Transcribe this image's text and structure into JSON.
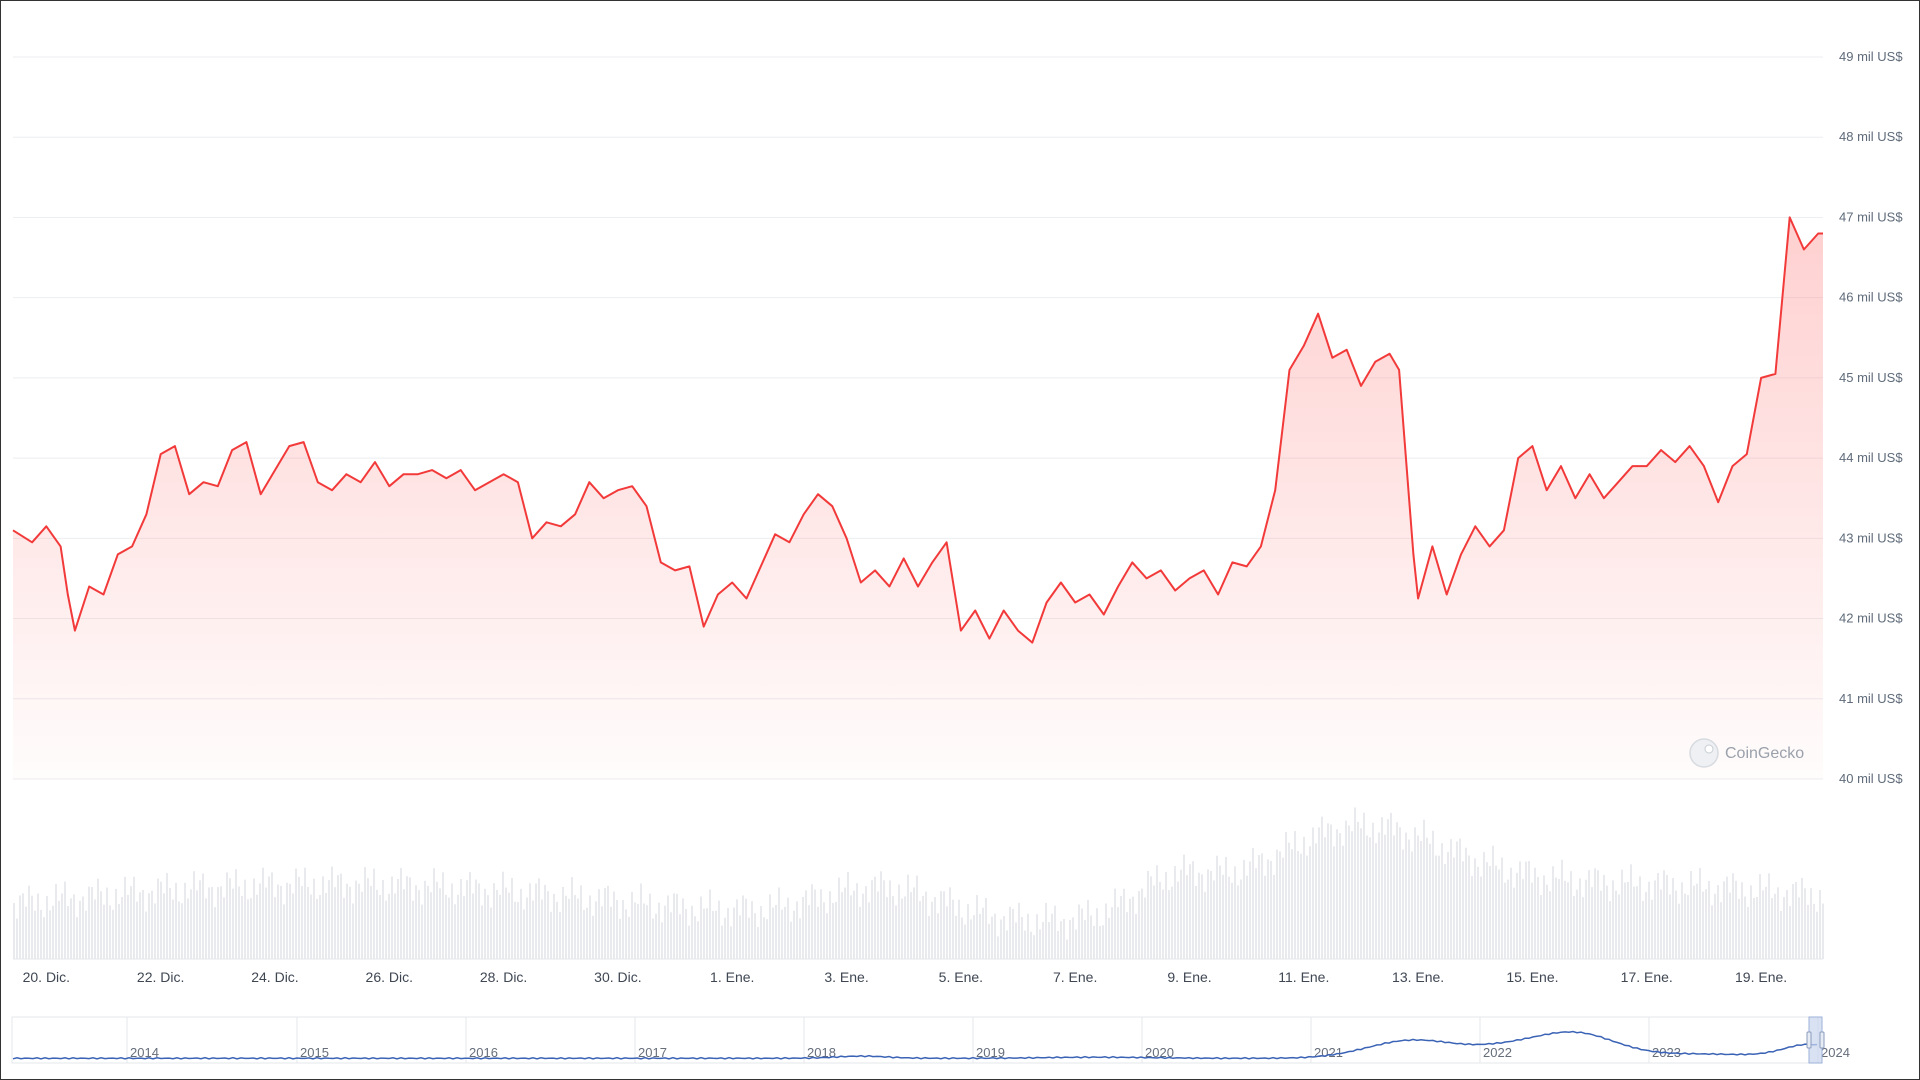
{
  "chart_data": {
    "type": "area",
    "title": "",
    "xlabel": "",
    "ylabel": "",
    "ylim": [
      40000,
      49000
    ],
    "y_tick_values": [
      40000,
      41000,
      42000,
      43000,
      44000,
      45000,
      46000,
      47000,
      48000,
      49000
    ],
    "y_tick_labels": [
      "40 mil US$",
      "41 mil US$",
      "42 mil US$",
      "43 mil US$",
      "44 mil US$",
      "45 mil US$",
      "46 mil US$",
      "47 mil US$",
      "48 mil US$",
      "49 mil US$"
    ],
    "x_range": [
      "2023-12-19T10:00",
      "2024-01-20T02:00"
    ],
    "x_ticks": [
      {
        "date": "2023-12-20",
        "label": "20. Dic."
      },
      {
        "date": "2023-12-22",
        "label": "22. Dic."
      },
      {
        "date": "2023-12-24",
        "label": "24. Dic."
      },
      {
        "date": "2023-12-26",
        "label": "26. Dic."
      },
      {
        "date": "2023-12-28",
        "label": "28. Dic."
      },
      {
        "date": "2023-12-30",
        "label": "30. Dic."
      },
      {
        "date": "2024-01-01",
        "label": "1. Ene."
      },
      {
        "date": "2024-01-03",
        "label": "3. Ene."
      },
      {
        "date": "2024-01-05",
        "label": "5. Ene."
      },
      {
        "date": "2024-01-07",
        "label": "7. Ene."
      },
      {
        "date": "2024-01-09",
        "label": "9. Ene."
      },
      {
        "date": "2024-01-11",
        "label": "11. Ene."
      },
      {
        "date": "2024-01-13",
        "label": "13. Ene."
      },
      {
        "date": "2024-01-15",
        "label": "15. Ene."
      },
      {
        "date": "2024-01-17",
        "label": "17. Ene."
      },
      {
        "date": "2024-01-19",
        "label": "19. Ene."
      }
    ],
    "grid": true,
    "line_color": "#f23a3a",
    "fill_color": "#ff6b6b",
    "series": [
      {
        "values": [
          [
            "2023-12-19T10:00",
            43100
          ],
          [
            "2023-12-19T18:00",
            42950
          ],
          [
            "2023-12-20T00:00",
            43150
          ],
          [
            "2023-12-20T06:00",
            42900
          ],
          [
            "2023-12-20T09:00",
            42300
          ],
          [
            "2023-12-20T12:00",
            41850
          ],
          [
            "2023-12-20T18:00",
            42400
          ],
          [
            "2023-12-21T00:00",
            42300
          ],
          [
            "2023-12-21T06:00",
            42800
          ],
          [
            "2023-12-21T12:00",
            42900
          ],
          [
            "2023-12-21T18:00",
            43300
          ],
          [
            "2023-12-22T00:00",
            44050
          ],
          [
            "2023-12-22T06:00",
            44150
          ],
          [
            "2023-12-22T12:00",
            43550
          ],
          [
            "2023-12-22T18:00",
            43700
          ],
          [
            "2023-12-23T00:00",
            43650
          ],
          [
            "2023-12-23T06:00",
            44100
          ],
          [
            "2023-12-23T12:00",
            44200
          ],
          [
            "2023-12-23T18:00",
            43550
          ],
          [
            "2023-12-24T00:00",
            43850
          ],
          [
            "2023-12-24T06:00",
            44150
          ],
          [
            "2023-12-24T12:00",
            44200
          ],
          [
            "2023-12-24T18:00",
            43700
          ],
          [
            "2023-12-25T00:00",
            43600
          ],
          [
            "2023-12-25T06:00",
            43800
          ],
          [
            "2023-12-25T12:00",
            43700
          ],
          [
            "2023-12-25T18:00",
            43950
          ],
          [
            "2023-12-26T00:00",
            43650
          ],
          [
            "2023-12-26T06:00",
            43800
          ],
          [
            "2023-12-26T12:00",
            43800
          ],
          [
            "2023-12-26T18:00",
            43850
          ],
          [
            "2023-12-27T00:00",
            43750
          ],
          [
            "2023-12-27T06:00",
            43850
          ],
          [
            "2023-12-27T12:00",
            43600
          ],
          [
            "2023-12-27T18:00",
            43700
          ],
          [
            "2023-12-28T00:00",
            43800
          ],
          [
            "2023-12-28T06:00",
            43700
          ],
          [
            "2023-12-28T12:00",
            43000
          ],
          [
            "2023-12-28T18:00",
            43200
          ],
          [
            "2023-12-29T00:00",
            43150
          ],
          [
            "2023-12-29T06:00",
            43300
          ],
          [
            "2023-12-29T12:00",
            43700
          ],
          [
            "2023-12-29T18:00",
            43500
          ],
          [
            "2023-12-30T00:00",
            43600
          ],
          [
            "2023-12-30T06:00",
            43650
          ],
          [
            "2023-12-30T12:00",
            43400
          ],
          [
            "2023-12-30T18:00",
            42700
          ],
          [
            "2023-12-31T00:00",
            42600
          ],
          [
            "2023-12-31T06:00",
            42650
          ],
          [
            "2023-12-31T12:00",
            41900
          ],
          [
            "2023-12-31T18:00",
            42300
          ],
          [
            "2024-01-01T00:00",
            42450
          ],
          [
            "2024-01-01T06:00",
            42250
          ],
          [
            "2024-01-01T12:00",
            42650
          ],
          [
            "2024-01-01T18:00",
            43050
          ],
          [
            "2024-01-02T00:00",
            42950
          ],
          [
            "2024-01-02T06:00",
            43300
          ],
          [
            "2024-01-02T12:00",
            43550
          ],
          [
            "2024-01-02T18:00",
            43400
          ],
          [
            "2024-01-03T00:00",
            43000
          ],
          [
            "2024-01-03T06:00",
            42450
          ],
          [
            "2024-01-03T12:00",
            42600
          ],
          [
            "2024-01-03T18:00",
            42400
          ],
          [
            "2024-01-04T00:00",
            42750
          ],
          [
            "2024-01-04T06:00",
            42400
          ],
          [
            "2024-01-04T12:00",
            42700
          ],
          [
            "2024-01-04T18:00",
            42950
          ],
          [
            "2024-01-05T00:00",
            41850
          ],
          [
            "2024-01-05T06:00",
            42100
          ],
          [
            "2024-01-05T12:00",
            41750
          ],
          [
            "2024-01-05T18:00",
            42100
          ],
          [
            "2024-01-06T00:00",
            41850
          ],
          [
            "2024-01-06T06:00",
            41700
          ],
          [
            "2024-01-06T12:00",
            42200
          ],
          [
            "2024-01-06T18:00",
            42450
          ],
          [
            "2024-01-07T00:00",
            42200
          ],
          [
            "2024-01-07T06:00",
            42300
          ],
          [
            "2024-01-07T12:00",
            42050
          ],
          [
            "2024-01-07T18:00",
            42400
          ],
          [
            "2024-01-08T00:00",
            42700
          ],
          [
            "2024-01-08T06:00",
            42500
          ],
          [
            "2024-01-08T12:00",
            42600
          ],
          [
            "2024-01-08T18:00",
            42350
          ],
          [
            "2024-01-09T00:00",
            42500
          ],
          [
            "2024-01-09T06:00",
            42600
          ],
          [
            "2024-01-09T12:00",
            42300
          ],
          [
            "2024-01-09T18:00",
            42700
          ],
          [
            "2024-01-10T00:00",
            42650
          ],
          [
            "2024-01-10T06:00",
            42900
          ],
          [
            "2024-01-10T12:00",
            43600
          ],
          [
            "2024-01-10T18:00",
            45100
          ],
          [
            "2024-01-11T00:00",
            45400
          ],
          [
            "2024-01-11T06:00",
            45800
          ],
          [
            "2024-01-11T12:00",
            45250
          ],
          [
            "2024-01-11T18:00",
            45350
          ],
          [
            "2024-01-12T00:00",
            44900
          ],
          [
            "2024-01-12T06:00",
            45200
          ],
          [
            "2024-01-12T12:00",
            45300
          ],
          [
            "2024-01-12T16:00",
            45100
          ],
          [
            "2024-01-12T22:00",
            42800
          ],
          [
            "2024-01-13T00:00",
            42250
          ],
          [
            "2024-01-13T06:00",
            42900
          ],
          [
            "2024-01-13T12:00",
            42300
          ],
          [
            "2024-01-13T18:00",
            42800
          ],
          [
            "2024-01-14T00:00",
            43150
          ],
          [
            "2024-01-14T06:00",
            42900
          ],
          [
            "2024-01-14T12:00",
            43100
          ],
          [
            "2024-01-14T18:00",
            44000
          ],
          [
            "2024-01-15T00:00",
            44150
          ],
          [
            "2024-01-15T06:00",
            43600
          ],
          [
            "2024-01-15T12:00",
            43900
          ],
          [
            "2024-01-15T18:00",
            43500
          ],
          [
            "2024-01-16T00:00",
            43800
          ],
          [
            "2024-01-16T06:00",
            43500
          ],
          [
            "2024-01-16T12:00",
            43700
          ],
          [
            "2024-01-16T18:00",
            43900
          ],
          [
            "2024-01-17T00:00",
            43900
          ],
          [
            "2024-01-17T06:00",
            44100
          ],
          [
            "2024-01-17T12:00",
            43950
          ],
          [
            "2024-01-17T18:00",
            44150
          ],
          [
            "2024-01-18T00:00",
            43900
          ],
          [
            "2024-01-18T06:00",
            43450
          ],
          [
            "2024-01-18T12:00",
            43900
          ],
          [
            "2024-01-18T18:00",
            44050
          ],
          [
            "2024-01-19T00:00",
            45000
          ],
          [
            "2024-01-19T06:00",
            45050
          ],
          [
            "2024-01-19T12:00",
            47000
          ],
          [
            "2024-01-19T18:00",
            46600
          ],
          [
            "2024-01-20T00:00",
            46800
          ],
          [
            "2024-01-20T02:00",
            46800
          ]
        ]
      }
    ],
    "volume_bars": "present",
    "watermark": "CoinGecko",
    "navigator": {
      "labels": [
        "2014",
        "2015",
        "2016",
        "2017",
        "2018",
        "2019",
        "2020",
        "2021",
        "2022",
        "2023",
        "2024"
      ],
      "line_color": "#3b63b5"
    }
  }
}
